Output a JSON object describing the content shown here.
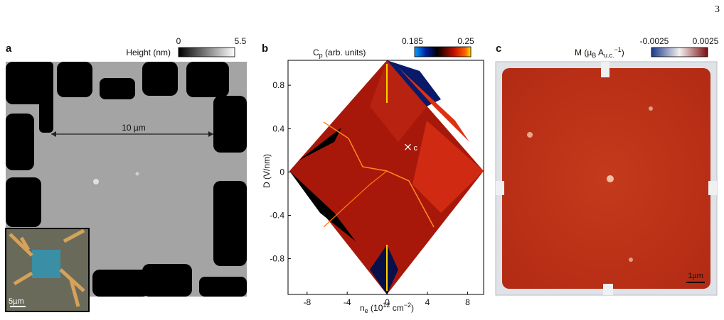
{
  "page_number": "3",
  "panel_a": {
    "label": "a",
    "colorbar": {
      "title": "Height (nm)",
      "min": 0,
      "max": 5.5
    },
    "arrow_label": "10 µm",
    "inset_scale": "5µm"
  },
  "panel_b": {
    "label": "b",
    "colorbar": {
      "title": [
        "C",
        "p",
        " (arb. units)"
      ],
      "min": 0.185,
      "max": 0.25
    },
    "x_label": [
      "n",
      "e",
      " (10",
      "12",
      " cm",
      "−2",
      ")"
    ],
    "y_label": "D (V/nm)",
    "xlim": [
      -9.9,
      9.6
    ],
    "ylim": [
      -1.13,
      1.03
    ],
    "xticks": [
      -8,
      -4,
      0,
      4,
      8
    ],
    "yticks": [
      -0.8,
      -0.4,
      0,
      0.4,
      0.8
    ],
    "marker": {
      "label": "c",
      "x": 2.05,
      "y": 0.23
    }
  },
  "panel_c": {
    "label": "c",
    "colorbar": {
      "title": [
        "M (µ",
        "B",
        " A",
        "u.c.",
        "−1",
        ")"
      ],
      "min": -0.0025,
      "max": 0.0025
    },
    "scale_bar": "1µm"
  }
}
